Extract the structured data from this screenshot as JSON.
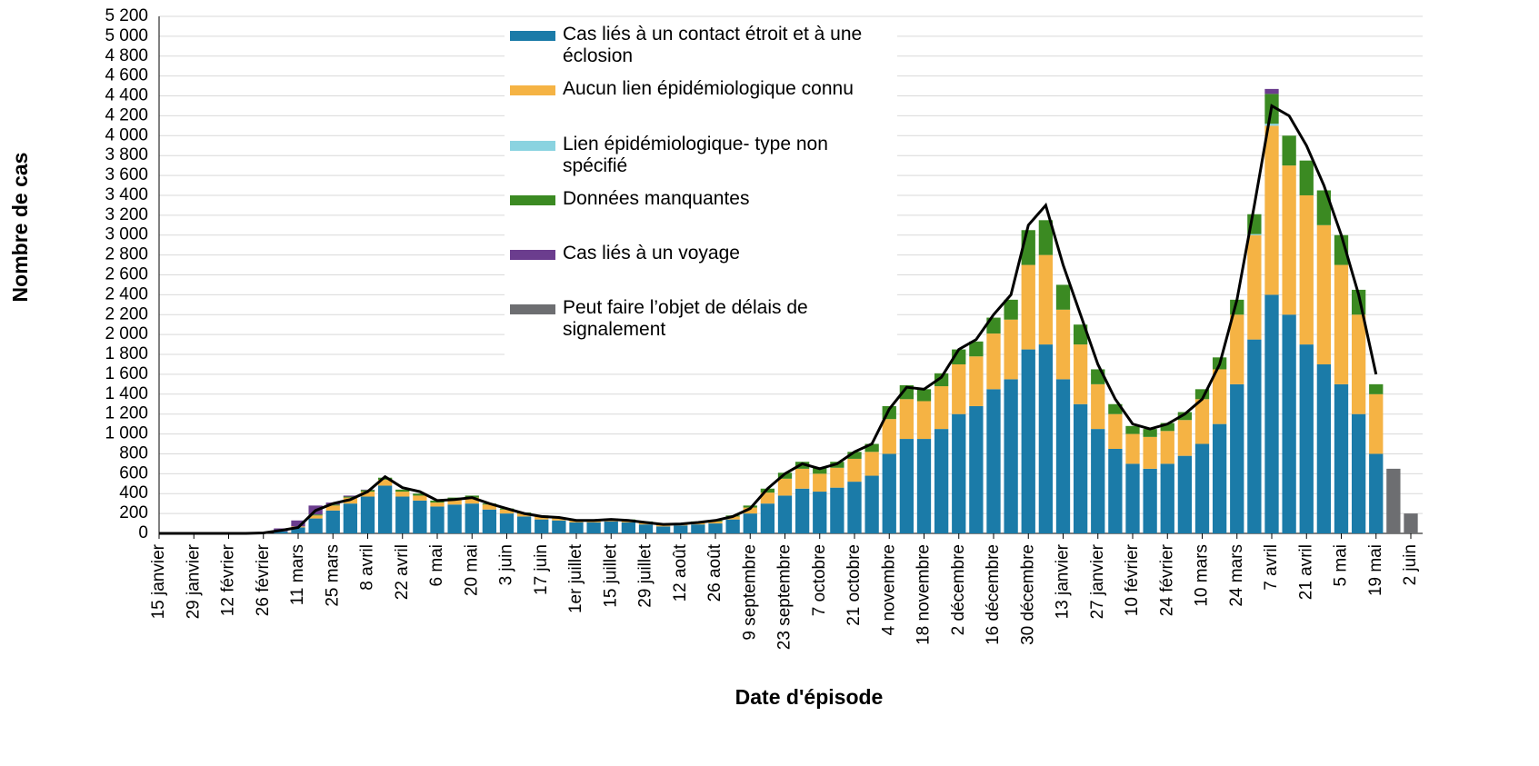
{
  "chart_data": {
    "type": "bar",
    "stacked": true,
    "y_label": "Nombre de cas",
    "x_label": "Date d'épisode",
    "categories": [
      "15 janvier",
      null,
      "29 janvier",
      null,
      "12 février",
      null,
      "26 février",
      null,
      "11 mars",
      null,
      "25 mars",
      null,
      "8 avril",
      null,
      "22 avril",
      null,
      "6 mai",
      null,
      "20 mai",
      null,
      "3 juin",
      null,
      "17 juin",
      null,
      "1er juillet",
      null,
      "15 juillet",
      null,
      "29 juillet",
      null,
      "12 août",
      null,
      "26 août",
      null,
      "9 septembre",
      null,
      "23 septembre",
      null,
      "7 octobre",
      null,
      "21 octobre",
      null,
      "4 novembre",
      null,
      "18 novembre",
      null,
      "2 décembre",
      null,
      "16 décembre",
      null,
      "30 décembre",
      null,
      "13 janvier",
      null,
      "27 janvier",
      null,
      "10 février",
      null,
      "24 février",
      null,
      "10 mars",
      null,
      "24 mars",
      null,
      "7 avril",
      null,
      "21 avril",
      null,
      "5 mai",
      null,
      "19 mai",
      null,
      "2 juin"
    ],
    "series": [
      {
        "name": "Cas liés à un contact étroit et à une éclosion",
        "color": "#1b7ba8",
        "values": [
          0,
          0,
          0,
          0,
          0,
          0,
          0,
          20,
          60,
          150,
          230,
          300,
          370,
          480,
          370,
          330,
          270,
          290,
          300,
          240,
          200,
          170,
          140,
          130,
          110,
          110,
          120,
          110,
          90,
          70,
          80,
          90,
          100,
          140,
          200,
          300,
          380,
          450,
          420,
          460,
          520,
          580,
          800,
          950,
          950,
          1050,
          1200,
          1280,
          1450,
          1550,
          1850,
          1900,
          1550,
          1300,
          1050,
          850,
          700,
          650,
          700,
          780,
          900,
          1100,
          1500,
          1950,
          2400,
          2200,
          1900,
          1700,
          1500,
          1200,
          800,
          0,
          0
        ]
      },
      {
        "name": "Aucun lien épidémiologique connu",
        "color": "#f5b344",
        "values": [
          0,
          0,
          0,
          0,
          0,
          0,
          0,
          0,
          10,
          30,
          50,
          60,
          50,
          60,
          50,
          50,
          40,
          50,
          60,
          50,
          40,
          30,
          30,
          20,
          20,
          20,
          20,
          20,
          20,
          15,
          15,
          20,
          20,
          30,
          60,
          110,
          170,
          200,
          180,
          200,
          230,
          240,
          350,
          400,
          380,
          430,
          500,
          500,
          560,
          600,
          850,
          900,
          700,
          600,
          450,
          350,
          300,
          320,
          330,
          360,
          450,
          550,
          700,
          1050,
          1700,
          1500,
          1500,
          1400,
          1200,
          1000,
          600,
          0,
          0
        ]
      },
      {
        "name": "Lien épidémiologique- type non spécifié",
        "color": "#8ad3e0",
        "values": [
          0,
          0,
          0,
          0,
          0,
          0,
          0,
          0,
          0,
          0,
          0,
          0,
          0,
          0,
          0,
          0,
          0,
          0,
          0,
          0,
          0,
          0,
          0,
          0,
          0,
          0,
          0,
          0,
          0,
          0,
          0,
          0,
          0,
          0,
          0,
          0,
          0,
          0,
          0,
          0,
          0,
          0,
          0,
          0,
          0,
          0,
          0,
          0,
          0,
          0,
          0,
          0,
          0,
          0,
          0,
          0,
          0,
          0,
          0,
          0,
          0,
          0,
          0,
          10,
          20,
          0,
          0,
          0,
          0,
          0,
          0,
          0,
          0
        ]
      },
      {
        "name": "Données manquantes",
        "color": "#3b8a22",
        "values": [
          0,
          0,
          0,
          0,
          0,
          0,
          0,
          0,
          0,
          10,
          10,
          10,
          15,
          20,
          20,
          20,
          20,
          20,
          20,
          10,
          10,
          10,
          10,
          10,
          10,
          10,
          10,
          10,
          10,
          5,
          5,
          10,
          10,
          10,
          20,
          40,
          60,
          70,
          60,
          60,
          70,
          80,
          130,
          140,
          120,
          130,
          150,
          150,
          160,
          200,
          350,
          350,
          250,
          200,
          150,
          100,
          80,
          80,
          80,
          80,
          100,
          120,
          150,
          200,
          300,
          300,
          350,
          350,
          300,
          250,
          100,
          0,
          0
        ]
      },
      {
        "name": "Cas liés à un voyage",
        "color": "#6b3d8e",
        "values": [
          0,
          0,
          0,
          0,
          0,
          0,
          0,
          30,
          60,
          90,
          20,
          10,
          5,
          0,
          0,
          0,
          0,
          0,
          0,
          0,
          0,
          0,
          0,
          0,
          0,
          0,
          0,
          0,
          0,
          0,
          0,
          0,
          0,
          0,
          0,
          0,
          0,
          0,
          0,
          0,
          0,
          0,
          0,
          0,
          0,
          0,
          0,
          0,
          0,
          0,
          0,
          0,
          0,
          0,
          0,
          0,
          0,
          0,
          0,
          0,
          0,
          0,
          0,
          0,
          50,
          0,
          0,
          0,
          0,
          0,
          0,
          0,
          0
        ]
      },
      {
        "name": "Peut faire l’objet de délais de signalement",
        "color": "#6d6e71",
        "values": [
          0,
          0,
          0,
          0,
          0,
          0,
          0,
          0,
          0,
          0,
          0,
          0,
          0,
          0,
          0,
          0,
          0,
          0,
          0,
          0,
          0,
          0,
          0,
          0,
          0,
          0,
          0,
          0,
          0,
          0,
          0,
          0,
          0,
          0,
          0,
          0,
          0,
          0,
          0,
          0,
          0,
          0,
          0,
          0,
          0,
          0,
          0,
          0,
          0,
          0,
          0,
          0,
          0,
          0,
          0,
          0,
          0,
          0,
          0,
          0,
          0,
          0,
          0,
          0,
          0,
          0,
          0,
          0,
          0,
          0,
          0,
          650,
          200
        ]
      }
    ],
    "moving_average": {
      "color": "#000000",
      "values": [
        0,
        0,
        0,
        0,
        0,
        0,
        5,
        30,
        60,
        230,
        300,
        340,
        420,
        570,
        460,
        420,
        330,
        340,
        360,
        300,
        250,
        200,
        170,
        160,
        130,
        130,
        140,
        130,
        110,
        90,
        95,
        110,
        130,
        170,
        250,
        450,
        600,
        700,
        650,
        700,
        820,
        900,
        1250,
        1470,
        1450,
        1570,
        1850,
        1950,
        2200,
        2400,
        3100,
        3300,
        2700,
        2200,
        1700,
        1350,
        1100,
        1050,
        1100,
        1200,
        1350,
        1700,
        2350,
        3300,
        4300,
        4200,
        3900,
        3500,
        3000,
        2400,
        1600,
        null,
        null
      ]
    },
    "ylim": [
      0,
      5200
    ],
    "yticks": [
      0,
      200,
      400,
      600,
      800,
      {
        "value": 1000,
        "label": "1 000"
      },
      {
        "value": 1200,
        "label": "1 200"
      },
      {
        "value": 1400,
        "label": "1 400"
      },
      {
        "value": 1600,
        "label": "1 600"
      },
      {
        "value": 1800,
        "label": "1 800"
      },
      {
        "value": 2000,
        "label": "2 000"
      },
      {
        "value": 2200,
        "label": "2 200"
      },
      {
        "value": 2400,
        "label": "2 400"
      },
      {
        "value": 2600,
        "label": "2 600"
      },
      {
        "value": 2800,
        "label": "2 800"
      },
      {
        "value": 3000,
        "label": "3 000"
      },
      {
        "value": 3200,
        "label": "3 200"
      },
      {
        "value": 3400,
        "label": "3 400"
      },
      {
        "value": 3600,
        "label": "3 600"
      },
      {
        "value": 3800,
        "label": "3 800"
      },
      {
        "value": 4000,
        "label": "4 000"
      },
      {
        "value": 4200,
        "label": "4 200"
      },
      {
        "value": 4400,
        "label": "4 400"
      },
      {
        "value": 4600,
        "label": "4 600"
      },
      {
        "value": 4800,
        "label": "4 800"
      },
      {
        "value": 5000,
        "label": "5 000"
      },
      {
        "value": 5200,
        "label": "5 200"
      }
    ],
    "grid": true
  }
}
